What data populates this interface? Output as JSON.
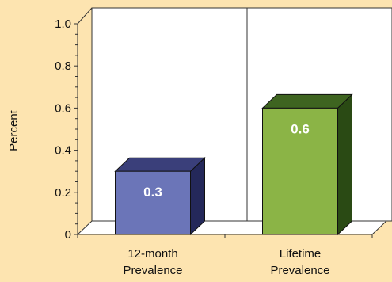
{
  "background": "#fde4b0",
  "chart_data": {
    "type": "bar",
    "title": "",
    "xlabel": "",
    "ylabel": "Percent",
    "ylim": [
      0,
      1.0
    ],
    "yticks": [
      "0",
      "0.2",
      "0.4",
      "0.6",
      "0.8",
      "1.0"
    ],
    "grid": false,
    "legend": "none",
    "three_d": true,
    "categories": [
      {
        "line1": "12-month",
        "line2": "Prevalence"
      },
      {
        "line1": "Lifetime",
        "line2": "Prevalence"
      }
    ],
    "values": [
      0.3,
      0.6
    ],
    "value_labels": [
      "0.3",
      "0.6"
    ],
    "colors": [
      {
        "front": "#6b75b8",
        "top": "#3a3f7a",
        "side": "#24285a"
      },
      {
        "front": "#8bb446",
        "top": "#3e6420",
        "side": "#2a4a14"
      }
    ]
  }
}
